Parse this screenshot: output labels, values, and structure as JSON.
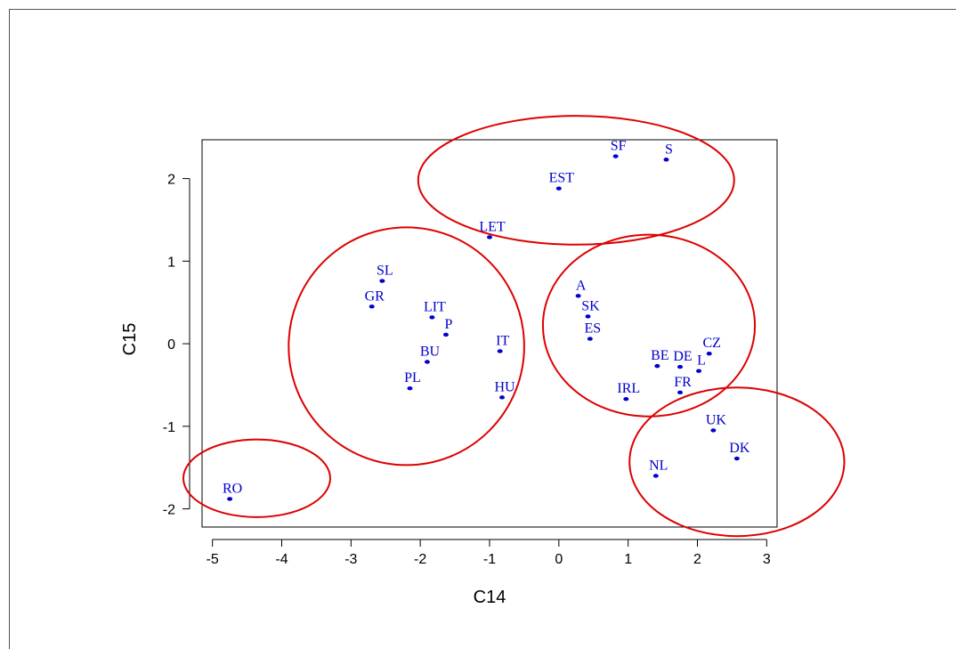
{
  "chart_data": {
    "type": "scatter",
    "title": "",
    "xlabel": "C14",
    "ylabel": "C15",
    "xlim": [
      -5.15,
      3.15
    ],
    "ylim": [
      -2.22,
      2.47
    ],
    "x_ticks": [
      -5,
      -4,
      -3,
      -2,
      -1,
      0,
      1,
      2,
      3
    ],
    "y_ticks": [
      -2,
      -1,
      0,
      1,
      2
    ],
    "grid": false,
    "point_color": "#0000cc",
    "cluster_color": "#dd0000",
    "points": [
      {
        "label": "SF",
        "x": 0.82,
        "y": 2.27
      },
      {
        "label": "S",
        "x": 1.55,
        "y": 2.23
      },
      {
        "label": "EST",
        "x": 0.0,
        "y": 1.88
      },
      {
        "label": "LET",
        "x": -1.0,
        "y": 1.29
      },
      {
        "label": "SL",
        "x": -2.55,
        "y": 0.76
      },
      {
        "label": "GR",
        "x": -2.7,
        "y": 0.45
      },
      {
        "label": "LIT",
        "x": -1.83,
        "y": 0.32
      },
      {
        "label": "P",
        "x": -1.63,
        "y": 0.11
      },
      {
        "label": "BU",
        "x": -1.9,
        "y": -0.22
      },
      {
        "label": "PL",
        "x": -2.15,
        "y": -0.54
      },
      {
        "label": "IT",
        "x": -0.85,
        "y": -0.09
      },
      {
        "label": "HU",
        "x": -0.82,
        "y": -0.65
      },
      {
        "label": "A",
        "x": 0.28,
        "y": 0.58
      },
      {
        "label": "SK",
        "x": 0.42,
        "y": 0.33
      },
      {
        "label": "ES",
        "x": 0.45,
        "y": 0.06
      },
      {
        "label": "BE",
        "x": 1.42,
        "y": -0.27
      },
      {
        "label": "DE",
        "x": 1.75,
        "y": -0.28
      },
      {
        "label": "L",
        "x": 2.02,
        "y": -0.33
      },
      {
        "label": "CZ",
        "x": 2.17,
        "y": -0.12
      },
      {
        "label": "FR",
        "x": 1.75,
        "y": -0.59
      },
      {
        "label": "IRL",
        "x": 0.97,
        "y": -0.67
      },
      {
        "label": "UK",
        "x": 2.23,
        "y": -1.05
      },
      {
        "label": "DK",
        "x": 2.57,
        "y": -1.39
      },
      {
        "label": "NL",
        "x": 1.4,
        "y": -1.6
      },
      {
        "label": "RO",
        "x": -4.75,
        "y": -1.88
      }
    ],
    "clusters": [
      {
        "cx": 0.25,
        "cy": 1.98,
        "rx": 2.28,
        "ry": 0.78
      },
      {
        "cx": -2.2,
        "cy": -0.03,
        "rx": 1.7,
        "ry": 1.44
      },
      {
        "cx": 1.3,
        "cy": 0.22,
        "rx": 1.53,
        "ry": 1.1
      },
      {
        "cx": 2.57,
        "cy": -1.43,
        "rx": 1.55,
        "ry": 0.9
      },
      {
        "cx": -4.36,
        "cy": -1.63,
        "rx": 1.06,
        "ry": 0.47
      }
    ]
  }
}
